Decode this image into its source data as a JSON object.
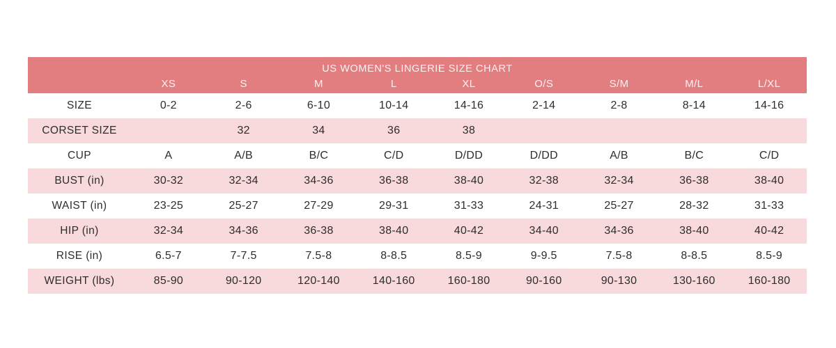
{
  "colors": {
    "header_bg": "#e27e80",
    "header_text": "#fdf2f2",
    "row_pink": "#f8d9dc",
    "row_white": "#ffffff",
    "body_text": "#2d2d2d"
  },
  "chart_data": {
    "type": "table",
    "title": "US WOMEN'S LINGERIE SIZE CHART",
    "columns": [
      "",
      "XS",
      "S",
      "M",
      "L",
      "XL",
      "O/S",
      "S/M",
      "M/L",
      "L/XL"
    ],
    "rows": [
      {
        "label": "SIZE",
        "values": [
          "0-2",
          "2-6",
          "6-10",
          "10-14",
          "14-16",
          "2-14",
          "2-8",
          "8-14",
          "14-16"
        ]
      },
      {
        "label": "CORSET SIZE",
        "values": [
          "",
          "32",
          "34",
          "36",
          "38",
          "",
          "",
          "",
          ""
        ]
      },
      {
        "label": "CUP",
        "values": [
          "A",
          "A/B",
          "B/C",
          "C/D",
          "D/DD",
          "D/DD",
          "A/B",
          "B/C",
          "C/D"
        ]
      },
      {
        "label": "BUST (in)",
        "values": [
          "30-32",
          "32-34",
          "34-36",
          "36-38",
          "38-40",
          "32-38",
          "32-34",
          "36-38",
          "38-40"
        ]
      },
      {
        "label": "WAIST (in)",
        "values": [
          "23-25",
          "25-27",
          "27-29",
          "29-31",
          "31-33",
          "24-31",
          "25-27",
          "28-32",
          "31-33"
        ]
      },
      {
        "label": "HIP (in)",
        "values": [
          "32-34",
          "34-36",
          "36-38",
          "38-40",
          "40-42",
          "34-40",
          "34-36",
          "38-40",
          "40-42"
        ]
      },
      {
        "label": "RISE (in)",
        "values": [
          "6.5-7",
          "7-7.5",
          "7.5-8",
          "8-8.5",
          "8.5-9",
          "9-9.5",
          "7.5-8",
          "8-8.5",
          "8.5-9"
        ]
      },
      {
        "label": "WEIGHT (lbs)",
        "values": [
          "85-90",
          "90-120",
          "120-140",
          "140-160",
          "160-180",
          "90-160",
          "90-130",
          "130-160",
          "160-180"
        ]
      }
    ]
  }
}
